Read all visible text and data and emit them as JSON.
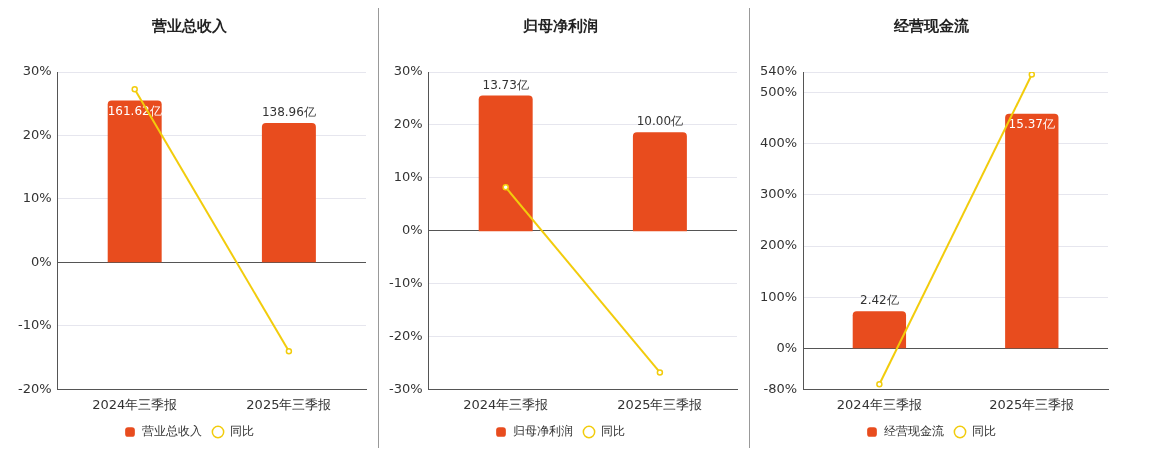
{
  "chart_data": [
    {
      "type": "bar",
      "title": "营业总收入",
      "categories": [
        "2024年三季报",
        "2025年三季报"
      ],
      "series": [
        {
          "name": "营业总收入",
          "axis": "y2",
          "color": "#e84c1e",
          "values": [
            161.62,
            138.96
          ],
          "value_labels": [
            "161.62亿",
            "138.96亿"
          ]
        },
        {
          "name": "同比",
          "type": "line",
          "axis": "y",
          "color": "#f2cc0c",
          "values": [
            27.3,
            -14.0
          ]
        }
      ],
      "ylim": [
        -20,
        30
      ],
      "yticks": [
        {
          "value": -20,
          "label": "-20%"
        },
        {
          "value": -10,
          "label": "-10%"
        },
        {
          "value": 0,
          "label": "0%"
        },
        {
          "value": 10,
          "label": "10%"
        },
        {
          "value": 20,
          "label": "20%"
        },
        {
          "value": 30,
          "label": "30%"
        }
      ],
      "y2lim": [
        -127,
        190
      ],
      "grid": "y",
      "legend": "bottom",
      "marker": "circle"
    },
    {
      "type": "bar",
      "title": "归母净利润",
      "categories": [
        "2024年三季报",
        "2025年三季报"
      ],
      "series": [
        {
          "name": "归母净利润",
          "axis": "y2",
          "color": "#e84c1e",
          "values": [
            13.73,
            10.0
          ],
          "value_labels": [
            "13.73亿",
            "10.00亿"
          ]
        },
        {
          "name": "同比",
          "type": "line",
          "axis": "y",
          "color": "#f2cc0c",
          "values": [
            8.2,
            -26.8
          ]
        }
      ],
      "ylim": [
        -30,
        30
      ],
      "yticks": [
        {
          "value": -30,
          "label": "-30%"
        },
        {
          "value": -20,
          "label": "-20%"
        },
        {
          "value": -10,
          "label": "-10%"
        },
        {
          "value": 0,
          "label": "0%"
        },
        {
          "value": 10,
          "label": "10%"
        },
        {
          "value": 20,
          "label": "20%"
        },
        {
          "value": 30,
          "label": "30%"
        }
      ],
      "y2lim": [
        -16,
        16.1
      ],
      "grid": "y",
      "legend": "bottom",
      "marker": "circle"
    },
    {
      "type": "bar",
      "title": "经营现金流",
      "categories": [
        "2024年三季报",
        "2025年三季报"
      ],
      "series": [
        {
          "name": "经营现金流",
          "axis": "y2",
          "color": "#e84c1e",
          "values": [
            2.42,
            15.37
          ],
          "value_labels": [
            "2.42亿",
            "15.37亿"
          ]
        },
        {
          "name": "同比",
          "type": "line",
          "axis": "y",
          "color": "#f2cc0c",
          "values": [
            -70,
            535
          ]
        }
      ],
      "ylim": [
        -80,
        540
      ],
      "yticks": [
        {
          "value": -80,
          "label": "-80%"
        },
        {
          "value": 0,
          "label": "0%"
        },
        {
          "value": 100,
          "label": "100%"
        },
        {
          "value": 200,
          "label": "200%"
        },
        {
          "value": 300,
          "label": "300%"
        },
        {
          "value": 400,
          "label": "400%"
        },
        {
          "value": 500,
          "label": "500%"
        },
        {
          "value": 540,
          "label": "540%"
        }
      ],
      "y2lim": [
        -2.7,
        18.1
      ],
      "grid": "y",
      "legend": "bottom",
      "marker": "circle"
    }
  ]
}
